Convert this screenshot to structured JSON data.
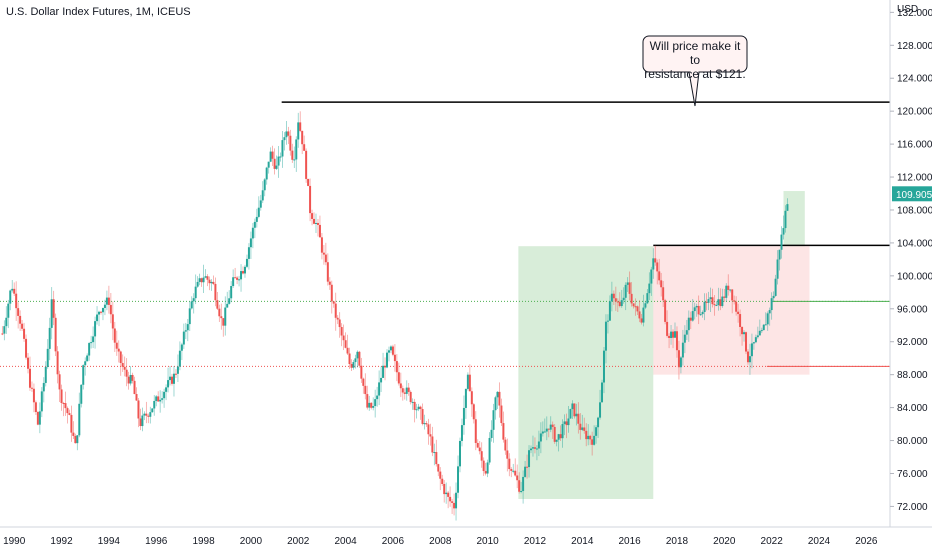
{
  "header": {
    "symbol_title": "U.S. Dollar Index Futures, 1M, ICEUS"
  },
  "price_axis": {
    "currency": "USD",
    "ticks": [
      "72.000",
      "76.000",
      "80.000",
      "84.000",
      "88.000",
      "92.000",
      "96.000",
      "100.000",
      "104.000",
      "108.000",
      "112.000",
      "116.000",
      "120.000",
      "124.000",
      "128.000",
      "132.000"
    ],
    "last_price_label": "109.905"
  },
  "time_axis": {
    "ticks": [
      "1990",
      "1992",
      "1994",
      "1996",
      "1998",
      "2000",
      "2002",
      "2004",
      "2006",
      "2008",
      "2010",
      "2012",
      "2014",
      "2016",
      "2018",
      "2020",
      "2022",
      "2024",
      "2026"
    ]
  },
  "callout": {
    "line1": "Will price make it to",
    "line2": "resistance at $121."
  },
  "colors": {
    "up": "#26a69a",
    "down": "#ef5350",
    "green_zone": "#4caf50",
    "red_zone": "#ef5350",
    "green_line": "#4caf50",
    "red_line": "#ef5350",
    "resistance": "#000000",
    "last_price_bg": "#26a69a"
  },
  "chart_data": {
    "type": "candlestick",
    "title": "U.S. Dollar Index Futures, 1M, ICEUS",
    "ylabel": "USD",
    "xlim": [
      1989.4,
      2027.0
    ],
    "ylim": [
      69.5,
      133.5
    ],
    "last_price": 109.905,
    "key_points": [
      {
        "x": 1989.5,
        "y": 93
      },
      {
        "x": 1989.9,
        "y": 99
      },
      {
        "x": 1990.3,
        "y": 94
      },
      {
        "x": 1990.6,
        "y": 88
      },
      {
        "x": 1991.0,
        "y": 82
      },
      {
        "x": 1991.3,
        "y": 88
      },
      {
        "x": 1991.6,
        "y": 97
      },
      {
        "x": 1991.9,
        "y": 86
      },
      {
        "x": 1992.3,
        "y": 83
      },
      {
        "x": 1992.6,
        "y": 79
      },
      {
        "x": 1992.9,
        "y": 89
      },
      {
        "x": 1993.3,
        "y": 93
      },
      {
        "x": 1993.6,
        "y": 96
      },
      {
        "x": 1994.0,
        "y": 97
      },
      {
        "x": 1994.3,
        "y": 91
      },
      {
        "x": 1994.7,
        "y": 88
      },
      {
        "x": 1995.0,
        "y": 87
      },
      {
        "x": 1995.3,
        "y": 82
      },
      {
        "x": 1995.8,
        "y": 84
      },
      {
        "x": 1996.3,
        "y": 86
      },
      {
        "x": 1996.8,
        "y": 88
      },
      {
        "x": 1997.2,
        "y": 93
      },
      {
        "x": 1997.6,
        "y": 98
      },
      {
        "x": 1998.0,
        "y": 100
      },
      {
        "x": 1998.4,
        "y": 99
      },
      {
        "x": 1998.8,
        "y": 94
      },
      {
        "x": 1999.2,
        "y": 99
      },
      {
        "x": 1999.7,
        "y": 101
      },
      {
        "x": 2000.2,
        "y": 107
      },
      {
        "x": 2000.5,
        "y": 110
      },
      {
        "x": 2000.8,
        "y": 115
      },
      {
        "x": 2001.1,
        "y": 113
      },
      {
        "x": 2001.5,
        "y": 118
      },
      {
        "x": 2001.8,
        "y": 114
      },
      {
        "x": 2002.0,
        "y": 119
      },
      {
        "x": 2002.2,
        "y": 116
      },
      {
        "x": 2002.5,
        "y": 108
      },
      {
        "x": 2002.8,
        "y": 106
      },
      {
        "x": 2003.1,
        "y": 102
      },
      {
        "x": 2003.5,
        "y": 96
      },
      {
        "x": 2003.9,
        "y": 92
      },
      {
        "x": 2004.2,
        "y": 89
      },
      {
        "x": 2004.5,
        "y": 91
      },
      {
        "x": 2004.9,
        "y": 84
      },
      {
        "x": 2005.2,
        "y": 84
      },
      {
        "x": 2005.6,
        "y": 89
      },
      {
        "x": 2005.9,
        "y": 91
      },
      {
        "x": 2006.3,
        "y": 87
      },
      {
        "x": 2006.8,
        "y": 85
      },
      {
        "x": 2007.2,
        "y": 83
      },
      {
        "x": 2007.6,
        "y": 80
      },
      {
        "x": 2007.9,
        "y": 76
      },
      {
        "x": 2008.3,
        "y": 73
      },
      {
        "x": 2008.6,
        "y": 72
      },
      {
        "x": 2008.9,
        "y": 82
      },
      {
        "x": 2009.2,
        "y": 88
      },
      {
        "x": 2009.5,
        "y": 80
      },
      {
        "x": 2009.9,
        "y": 76
      },
      {
        "x": 2010.4,
        "y": 86
      },
      {
        "x": 2010.8,
        "y": 78
      },
      {
        "x": 2011.1,
        "y": 76
      },
      {
        "x": 2011.4,
        "y": 74
      },
      {
        "x": 2011.8,
        "y": 79
      },
      {
        "x": 2012.2,
        "y": 80
      },
      {
        "x": 2012.6,
        "y": 82
      },
      {
        "x": 2012.9,
        "y": 80
      },
      {
        "x": 2013.3,
        "y": 82
      },
      {
        "x": 2013.6,
        "y": 84
      },
      {
        "x": 2014.0,
        "y": 81
      },
      {
        "x": 2014.5,
        "y": 80
      },
      {
        "x": 2014.8,
        "y": 86
      },
      {
        "x": 2015.0,
        "y": 94
      },
      {
        "x": 2015.3,
        "y": 98
      },
      {
        "x": 2015.6,
        "y": 96
      },
      {
        "x": 2015.9,
        "y": 99
      },
      {
        "x": 2016.2,
        "y": 96
      },
      {
        "x": 2016.5,
        "y": 95
      },
      {
        "x": 2016.8,
        "y": 99
      },
      {
        "x": 2017.0,
        "y": 102
      },
      {
        "x": 2017.3,
        "y": 99
      },
      {
        "x": 2017.6,
        "y": 93
      },
      {
        "x": 2017.9,
        "y": 93
      },
      {
        "x": 2018.1,
        "y": 89
      },
      {
        "x": 2018.4,
        "y": 94
      },
      {
        "x": 2018.8,
        "y": 96
      },
      {
        "x": 2019.1,
        "y": 96
      },
      {
        "x": 2019.5,
        "y": 97
      },
      {
        "x": 2019.9,
        "y": 97
      },
      {
        "x": 2020.2,
        "y": 99
      },
      {
        "x": 2020.5,
        "y": 96
      },
      {
        "x": 2020.8,
        "y": 93
      },
      {
        "x": 2021.0,
        "y": 90
      },
      {
        "x": 2021.3,
        "y": 92
      },
      {
        "x": 2021.6,
        "y": 93
      },
      {
        "x": 2021.9,
        "y": 96
      },
      {
        "x": 2022.1,
        "y": 98
      },
      {
        "x": 2022.3,
        "y": 103
      },
      {
        "x": 2022.5,
        "y": 106
      },
      {
        "x": 2022.7,
        "y": 109.9
      }
    ],
    "annotations": {
      "resistance_line": {
        "y": 121.1,
        "x_from": 2001.3,
        "label": "Will price make it to resistance at $121."
      },
      "resistance_line_2": {
        "y": 103.7,
        "x_from": 2017.0
      },
      "green_hline": {
        "y": 96.9
      },
      "red_hline": {
        "y": 89.0
      },
      "green_zone": {
        "x": [
          2011.3,
          2017.0
        ],
        "y": [
          72.9,
          103.6
        ]
      },
      "red_zone": {
        "x": [
          2017.0,
          2023.6
        ],
        "y": [
          88.0,
          103.6
        ]
      },
      "target_zone": {
        "x": [
          2022.5,
          2023.4
        ],
        "y": [
          103.6,
          110.3
        ]
      }
    }
  }
}
